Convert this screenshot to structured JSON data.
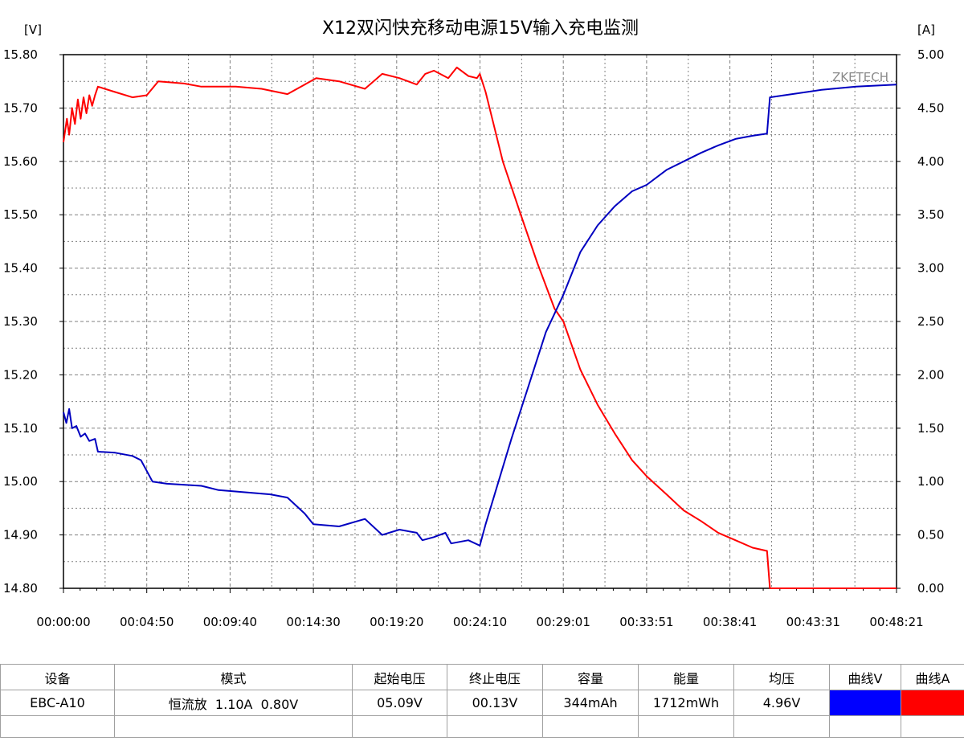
{
  "chart_data": {
    "type": "line",
    "title": "X12双闪快充移动电源15V输入充电监测",
    "left_unit": "[V]",
    "right_unit": "[A]",
    "watermark": "ZKETECH",
    "y_left": {
      "range": [
        14.8,
        15.8
      ],
      "ticks": [
        "15.80",
        "15.70",
        "15.60",
        "15.50",
        "15.40",
        "15.30",
        "15.20",
        "15.10",
        "15.00",
        "14.90",
        "14.80"
      ]
    },
    "y_right": {
      "range": [
        0,
        5
      ],
      "ticks": [
        "5.00",
        "4.50",
        "4.00",
        "3.50",
        "3.00",
        "2.50",
        "2.00",
        "1.50",
        "1.00",
        "0.50",
        "0.00"
      ]
    },
    "x_ticks": [
      "00:00:00",
      "00:04:50",
      "00:09:40",
      "00:14:30",
      "00:19:20",
      "00:24:10",
      "00:29:01",
      "00:33:51",
      "00:38:41",
      "00:43:31",
      "00:48:21"
    ],
    "grid": true,
    "series": [
      {
        "axis": "right",
        "color": "#ff0000",
        "points": [
          [
            "00:00:00",
            4.18
          ],
          [
            "00:00:12",
            4.4
          ],
          [
            "00:00:20",
            4.25
          ],
          [
            "00:00:30",
            4.5
          ],
          [
            "00:00:40",
            4.35
          ],
          [
            "00:00:50",
            4.58
          ],
          [
            "00:01:00",
            4.4
          ],
          [
            "00:01:10",
            4.6
          ],
          [
            "00:01:20",
            4.45
          ],
          [
            "00:01:30",
            4.62
          ],
          [
            "00:01:40",
            4.52
          ],
          [
            "00:01:50",
            4.62
          ],
          [
            "00:02:00",
            4.7
          ],
          [
            "00:03:00",
            4.65
          ],
          [
            "00:04:00",
            4.6
          ],
          [
            "00:04:50",
            4.62
          ],
          [
            "00:05:30",
            4.75
          ],
          [
            "00:07:00",
            4.73
          ],
          [
            "00:08:00",
            4.7
          ],
          [
            "00:10:00",
            4.7
          ],
          [
            "00:11:30",
            4.68
          ],
          [
            "00:13:00",
            4.63
          ],
          [
            "00:14:00",
            4.72
          ],
          [
            "00:14:40",
            4.78
          ],
          [
            "00:16:00",
            4.75
          ],
          [
            "00:17:30",
            4.68
          ],
          [
            "00:18:30",
            4.82
          ],
          [
            "00:19:30",
            4.78
          ],
          [
            "00:20:30",
            4.72
          ],
          [
            "00:21:00",
            4.82
          ],
          [
            "00:21:30",
            4.85
          ],
          [
            "00:22:20",
            4.78
          ],
          [
            "00:22:50",
            4.88
          ],
          [
            "00:23:30",
            4.8
          ],
          [
            "00:24:00",
            4.78
          ],
          [
            "00:24:10",
            4.82
          ],
          [
            "00:24:30",
            4.65
          ],
          [
            "00:25:30",
            4.0
          ],
          [
            "00:26:30",
            3.52
          ],
          [
            "00:27:30",
            3.05
          ],
          [
            "00:28:30",
            2.62
          ],
          [
            "00:29:01",
            2.5
          ],
          [
            "00:30:00",
            2.05
          ],
          [
            "00:31:00",
            1.72
          ],
          [
            "00:32:00",
            1.45
          ],
          [
            "00:33:00",
            1.2
          ],
          [
            "00:33:51",
            1.05
          ],
          [
            "00:35:00",
            0.88
          ],
          [
            "00:36:00",
            0.73
          ],
          [
            "00:37:00",
            0.63
          ],
          [
            "00:38:00",
            0.52
          ],
          [
            "00:39:00",
            0.45
          ],
          [
            "00:40:00",
            0.38
          ],
          [
            "00:40:50",
            0.35
          ],
          [
            "00:41:00",
            0.0
          ],
          [
            "00:48:21",
            0.0
          ]
        ]
      },
      {
        "axis": "right",
        "color": "#0000c0",
        "points": [
          [
            "00:00:00",
            1.65
          ],
          [
            "00:00:10",
            1.55
          ],
          [
            "00:00:20",
            1.68
          ],
          [
            "00:00:30",
            1.5
          ],
          [
            "00:00:45",
            1.52
          ],
          [
            "00:01:00",
            1.42
          ],
          [
            "00:01:15",
            1.45
          ],
          [
            "00:01:30",
            1.38
          ],
          [
            "00:01:50",
            1.4
          ],
          [
            "00:02:00",
            1.28
          ],
          [
            "00:03:00",
            1.27
          ],
          [
            "00:04:00",
            1.24
          ],
          [
            "00:04:30",
            1.2
          ],
          [
            "00:05:10",
            1.0
          ],
          [
            "00:06:00",
            0.98
          ],
          [
            "00:08:00",
            0.96
          ],
          [
            "00:09:00",
            0.92
          ],
          [
            "00:12:00",
            0.88
          ],
          [
            "00:13:00",
            0.85
          ],
          [
            "00:14:00",
            0.7
          ],
          [
            "00:14:30",
            0.6
          ],
          [
            "00:16:00",
            0.58
          ],
          [
            "00:17:30",
            0.65
          ],
          [
            "00:18:30",
            0.5
          ],
          [
            "00:19:30",
            0.55
          ],
          [
            "00:20:30",
            0.52
          ],
          [
            "00:20:50",
            0.45
          ],
          [
            "00:21:30",
            0.48
          ],
          [
            "00:22:10",
            0.52
          ],
          [
            "00:22:30",
            0.42
          ],
          [
            "00:23:30",
            0.45
          ],
          [
            "00:24:10",
            0.4
          ],
          [
            "00:24:30",
            0.6
          ],
          [
            "00:26:00",
            1.4
          ],
          [
            "00:27:00",
            1.9
          ],
          [
            "00:28:00",
            2.4
          ],
          [
            "00:29:01",
            2.75
          ],
          [
            "00:30:00",
            3.15
          ],
          [
            "00:31:00",
            3.4
          ],
          [
            "00:32:00",
            3.58
          ],
          [
            "00:33:00",
            3.72
          ],
          [
            "00:33:51",
            3.78
          ],
          [
            "00:35:00",
            3.92
          ],
          [
            "00:36:00",
            4.0
          ],
          [
            "00:37:00",
            4.08
          ],
          [
            "00:38:00",
            4.15
          ],
          [
            "00:39:00",
            4.21
          ],
          [
            "00:40:00",
            4.24
          ],
          [
            "00:40:50",
            4.26
          ],
          [
            "00:41:00",
            4.6
          ],
          [
            "00:44:00",
            4.67
          ],
          [
            "00:46:00",
            4.7
          ],
          [
            "00:48:21",
            4.72
          ]
        ]
      }
    ]
  },
  "summary_table": {
    "headers": [
      "设备",
      "模式",
      "起始电压",
      "终止电压",
      "容量",
      "能量",
      "均压",
      "曲线V",
      "曲线A"
    ],
    "row": [
      "EBC-A10",
      "恒流放  1.10A  0.80V",
      "05.09V",
      "00.13V",
      "344mAh",
      "1712mWh",
      "4.96V",
      "",
      ""
    ],
    "curve_v_color": "#0000ff",
    "curve_a_color": "#ff0000"
  }
}
